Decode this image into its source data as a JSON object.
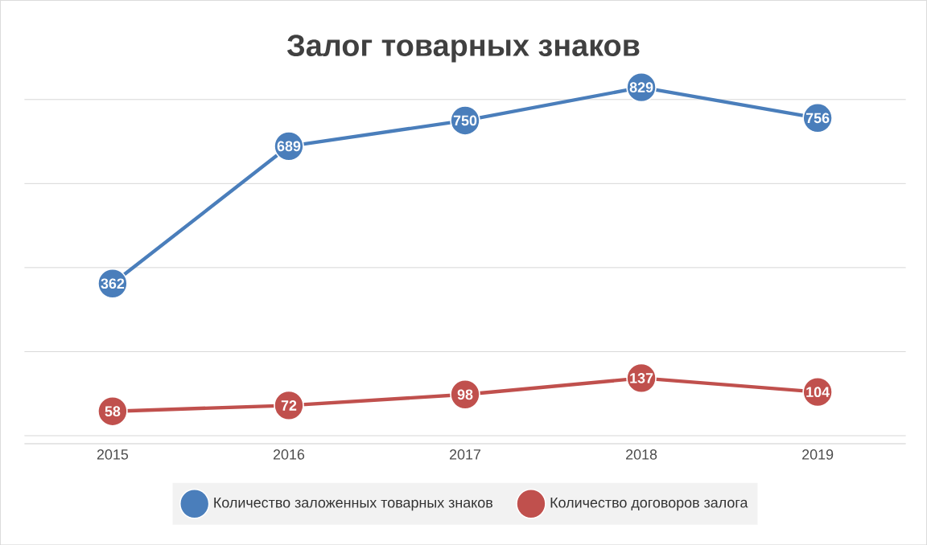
{
  "chart_data": {
    "type": "line",
    "title": "Залог товарных знаков",
    "categories": [
      "2015",
      "2016",
      "2017",
      "2018",
      "2019"
    ],
    "series": [
      {
        "name": "Количество заложенных товарных знаков",
        "color": "#4a7ebb",
        "values": [
          362,
          689,
          750,
          829,
          756
        ]
      },
      {
        "name": "Количество договоров залога",
        "color": "#c0504d",
        "values": [
          58,
          72,
          98,
          137,
          104
        ]
      }
    ],
    "tick_labels": "x",
    "grid": "y",
    "legend": "bottom",
    "marker": "circle",
    "line_style": "solid",
    "data_labels": true
  }
}
